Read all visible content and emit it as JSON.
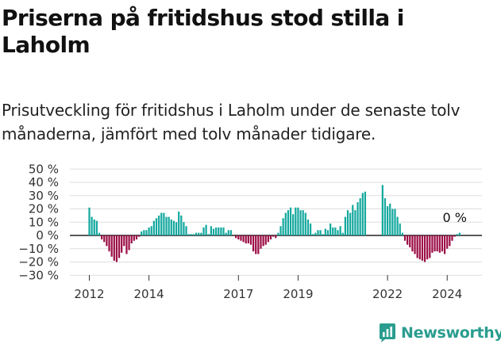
{
  "title": "Priserna på fritidshus stod stilla i Laholm",
  "subtitle": "Prisutveckling för fritidshus i Laholm under de senaste tolv månaderna, jämfört med tolv månader tidigare.",
  "brand": {
    "name": "Newsworthy"
  },
  "colors": {
    "positive": "#13a89e",
    "negative": "#9b0c45",
    "grid": "#dddddd",
    "brand": "#2a9d8f"
  },
  "chart_data": {
    "type": "bar",
    "x_unit": "month",
    "start_month": "2012-01",
    "ylim": [
      -30,
      50
    ],
    "yticks": [
      -30,
      -20,
      -10,
      0,
      10,
      20,
      30,
      40,
      50
    ],
    "ytick_labels": [
      "−30 %",
      "−20 %",
      "−10 %",
      "0 %",
      "10 %",
      "20 %",
      "30 %",
      "40 %",
      "50 %"
    ],
    "xticks": [
      "2012",
      "2014",
      "2017",
      "2019",
      "2022",
      "2024"
    ],
    "grid": true,
    "annotation": {
      "text": "0 %",
      "target": "last"
    },
    "values": [
      21,
      14,
      12,
      11,
      2,
      -3,
      -5,
      -8,
      -12,
      -16,
      -19,
      -20,
      -17,
      -13,
      -8,
      -14,
      -11,
      -6,
      -4,
      -3,
      -1,
      3,
      4,
      4,
      6,
      7,
      11,
      13,
      15,
      17,
      17,
      14,
      14,
      12,
      11,
      10,
      18,
      15,
      10,
      7,
      1,
      1,
      1,
      2,
      2,
      2,
      6,
      8,
      1,
      7,
      5,
      6,
      6,
      6,
      6,
      2,
      4,
      4,
      0,
      -2,
      -3,
      -4,
      -5,
      -6,
      -6,
      -7,
      -12,
      -14,
      -14,
      -10,
      -8,
      -7,
      -5,
      -3,
      -1,
      -2,
      2,
      7,
      13,
      17,
      19,
      21,
      16,
      21,
      21,
      19,
      19,
      17,
      12,
      9,
      1,
      2,
      4,
      4,
      1,
      5,
      4,
      9,
      6,
      6,
      4,
      7,
      2,
      14,
      19,
      17,
      23,
      19,
      25,
      28,
      32,
      33,
      0,
      0,
      0,
      0,
      0,
      0,
      38,
      28,
      22,
      24,
      20,
      20,
      14,
      9,
      2,
      -4,
      -7,
      -9,
      -12,
      -14,
      -17,
      -18,
      -19,
      -20,
      -18,
      -17,
      -13,
      -12,
      -12,
      -13,
      -12,
      -14,
      -10,
      -8,
      -4,
      -1,
      1,
      2,
      0
    ]
  }
}
